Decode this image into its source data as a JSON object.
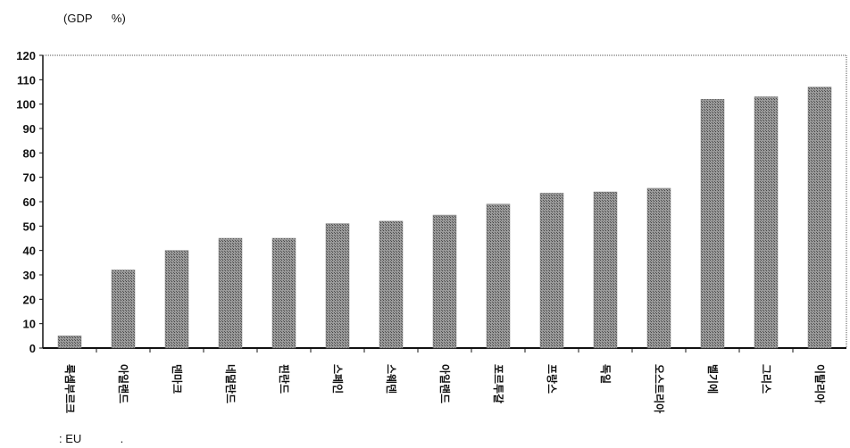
{
  "unit_label": "(GDP      %)",
  "footnote": ": EU            .",
  "chart_data": {
    "type": "bar",
    "title": "",
    "xlabel": "",
    "ylabel": "",
    "ylim": [
      0,
      120
    ],
    "yticks": [
      0,
      10,
      20,
      30,
      40,
      50,
      60,
      70,
      80,
      90,
      100,
      110,
      120
    ],
    "categories": [
      "룩셈부르크",
      "아일랜드",
      "덴마크",
      "네덜란드",
      "핀란드",
      "스페인",
      "스웨덴",
      "아일랜드",
      "포르투갈",
      "프랑스",
      "독일",
      "오스트리아",
      "벨기에",
      "그리스",
      "이탈리아"
    ],
    "values": [
      5,
      32,
      40,
      45,
      45,
      51,
      52,
      54.5,
      59,
      63.5,
      64,
      65.5,
      102,
      103,
      107
    ],
    "bar_color": "#8a8a8a",
    "grid": false,
    "legend": "none"
  }
}
